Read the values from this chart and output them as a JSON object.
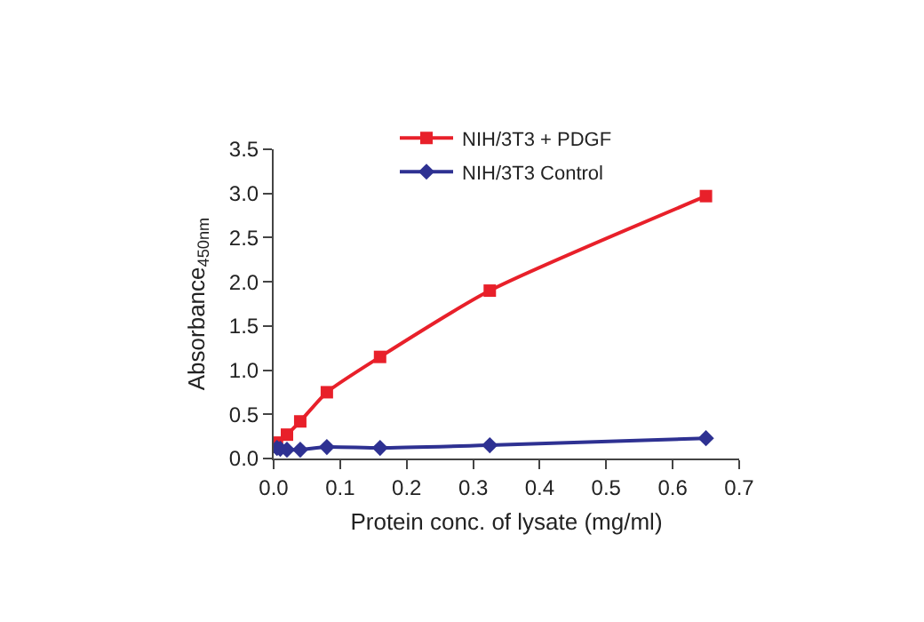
{
  "chart_data": {
    "type": "line",
    "xlabel": "Protein conc. of lysate (mg/ml)",
    "ylabel": "Absorbance$_{450nm}$",
    "series": [
      {
        "name": "NIH/3T3 + PDGF",
        "color": "#e8202a",
        "marker": "square",
        "x": [
          0.005,
          0.02,
          0.04,
          0.08,
          0.16,
          0.325,
          0.65
        ],
        "values": [
          0.18,
          0.27,
          0.42,
          0.75,
          1.15,
          1.9,
          2.97
        ]
      },
      {
        "name": "NIH/3T3 Control",
        "color": "#2e3192",
        "marker": "diamond",
        "x": [
          0.005,
          0.01,
          0.02,
          0.04,
          0.08,
          0.16,
          0.325,
          0.65
        ],
        "values": [
          0.12,
          0.11,
          0.1,
          0.1,
          0.13,
          0.12,
          0.15,
          0.23
        ]
      }
    ],
    "xlim": [
      0,
      0.7
    ],
    "xticks": [
      {
        "value": 0,
        "label": "0.0"
      },
      0.1,
      0.2,
      0.3,
      0.4,
      0.5,
      0.6,
      0.7
    ],
    "ylim": [
      0,
      3.5
    ],
    "yticks": [
      {
        "value": 0,
        "label": "0.0"
      },
      0.5,
      {
        "value": 1,
        "label": "1.0"
      },
      1.5,
      {
        "value": 2,
        "label": "2.0"
      },
      2.5,
      {
        "value": 3,
        "label": "3.0"
      },
      3.5
    ],
    "grid": false,
    "legend": "top",
    "line_style": "solid"
  }
}
